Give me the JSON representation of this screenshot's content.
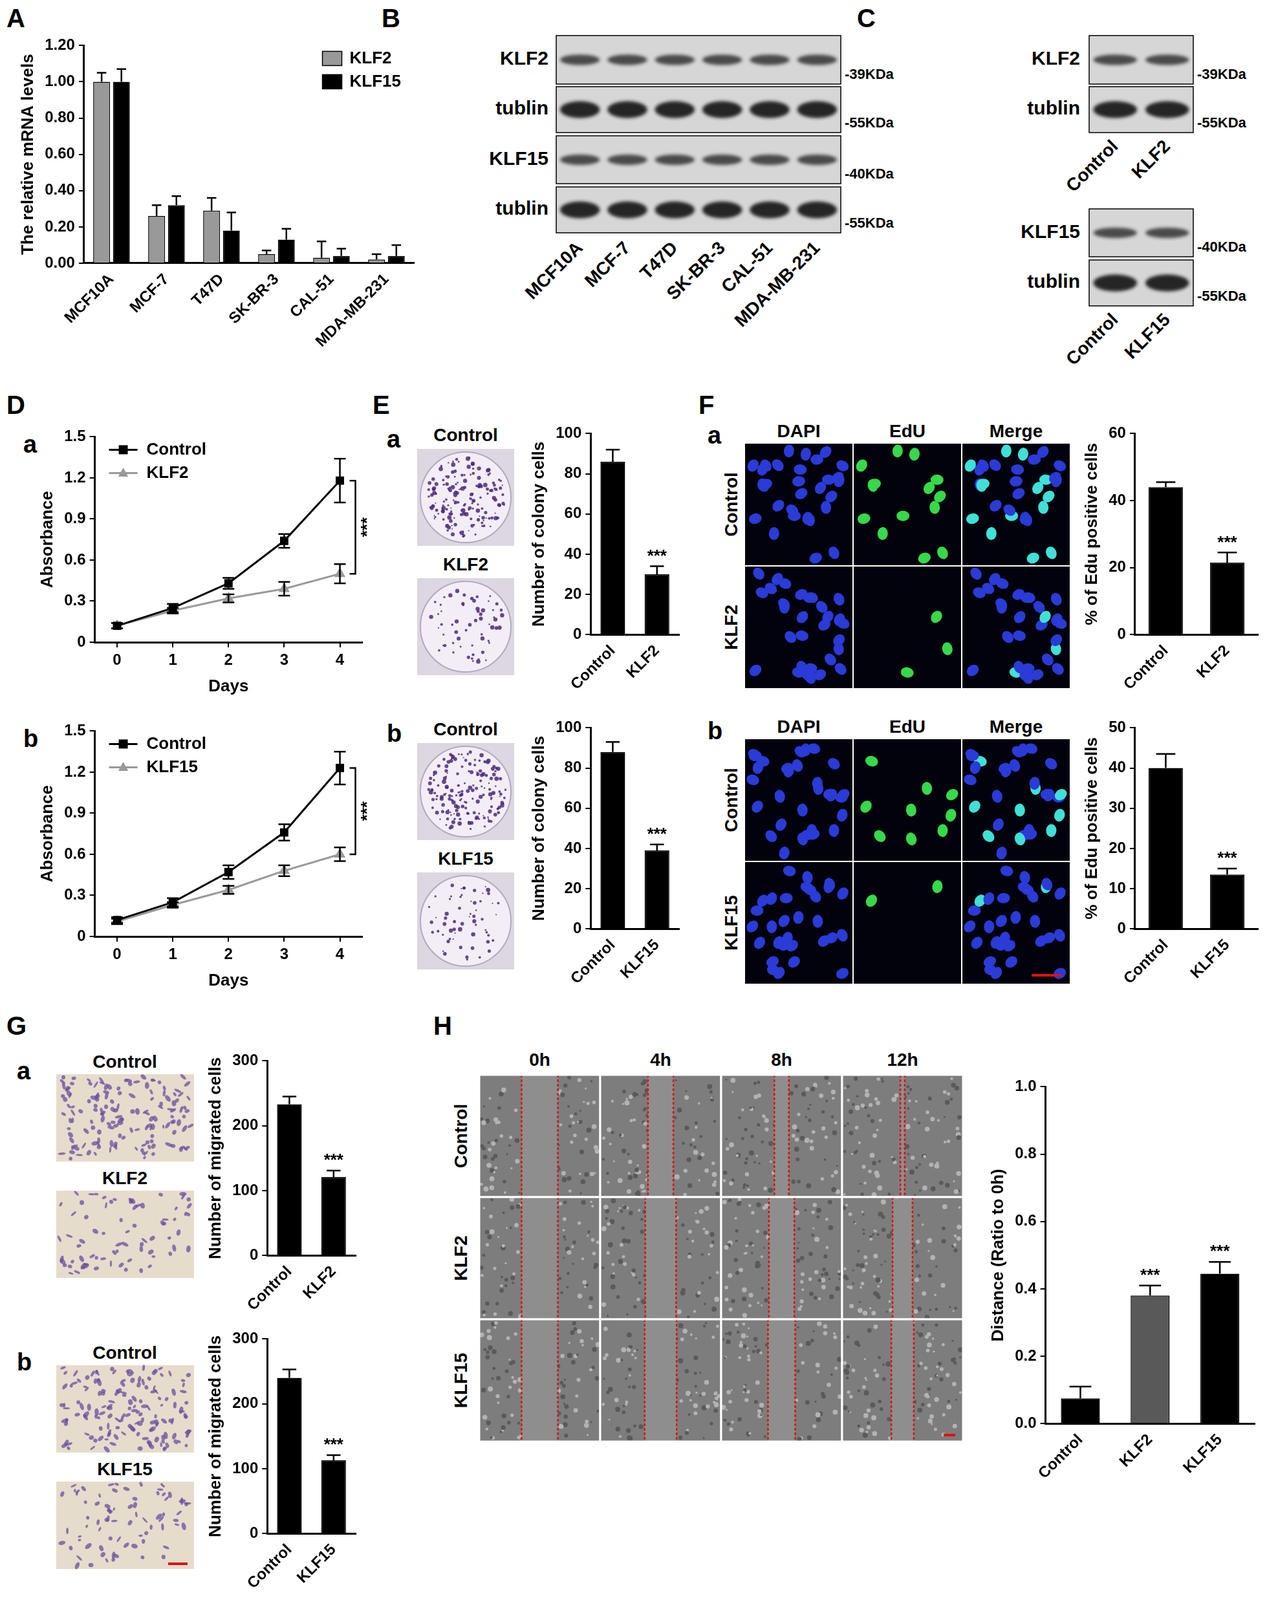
{
  "chart_data": [
    {
      "panel": "A",
      "type": "bar",
      "y_label": "The relative mRNA levels",
      "categories": [
        "MCF10A",
        "MCF-7",
        "T47D",
        "SK-BR-3",
        "CAL-51",
        "MDA-MB-231"
      ],
      "series": [
        {
          "name": "KLF2",
          "color": "#999999",
          "values": [
            1.0,
            0.26,
            0.29,
            0.05,
            0.03,
            0.02
          ],
          "errors": [
            0.05,
            0.06,
            0.07,
            0.02,
            0.09,
            0.03
          ]
        },
        {
          "name": "KLF15",
          "color": "#000000",
          "values": [
            1.0,
            0.32,
            0.18,
            0.13,
            0.04,
            0.04
          ],
          "errors": [
            0.07,
            0.05,
            0.1,
            0.06,
            0.04,
            0.06
          ]
        }
      ],
      "ylim": [
        0,
        1.2
      ],
      "yticks": [
        {
          "value": 0,
          "label": "0.00"
        },
        {
          "value": 0.2,
          "label": "0.20"
        },
        {
          "value": 0.4,
          "label": "0.40"
        },
        {
          "value": 0.6,
          "label": "0.60"
        },
        {
          "value": 0.8,
          "label": "0.80"
        },
        {
          "value": 1.0,
          "label": "1.00"
        },
        {
          "value": 1.2,
          "label": "1.20"
        }
      ],
      "grid": false,
      "legend": "top-right"
    },
    {
      "panel": "D",
      "subpanel": "a",
      "type": "line",
      "x_label": "Days",
      "y_label": "Absorbance",
      "x": [
        0,
        1,
        2,
        3,
        4
      ],
      "series": [
        {
          "name": "Control",
          "color": "#000000",
          "marker": "square",
          "line_style": "solid",
          "values": [
            0.12,
            0.25,
            0.43,
            0.74,
            1.18
          ],
          "errors": [
            0.02,
            0.03,
            0.04,
            0.05,
            0.16
          ]
        },
        {
          "name": "KLF2",
          "color": "#999999",
          "marker": "triangle",
          "line_style": "solid",
          "values": [
            0.12,
            0.23,
            0.32,
            0.39,
            0.5
          ],
          "errors": [
            0.02,
            0.02,
            0.03,
            0.05,
            0.07
          ]
        }
      ],
      "xlim": [
        -0.4,
        4.4
      ],
      "xticks": [
        0,
        1,
        2,
        3,
        4
      ],
      "ylim": [
        0,
        1.5
      ],
      "yticks": [
        0,
        0.3,
        0.6,
        0.9,
        1.2,
        1.5
      ],
      "grid": false,
      "legend": "top-left",
      "annotation": "***"
    },
    {
      "subpanel": "b",
      "type": "line",
      "x_label": "Days",
      "y_label": "Absorbance",
      "x": [
        0,
        1,
        2,
        3,
        4
      ],
      "series": [
        {
          "name": "Control",
          "color": "#000000",
          "marker": "square",
          "line_style": "solid",
          "values": [
            0.12,
            0.25,
            0.47,
            0.76,
            1.23
          ],
          "errors": [
            0.02,
            0.03,
            0.05,
            0.06,
            0.12
          ]
        },
        {
          "name": "KLF15",
          "color": "#999999",
          "marker": "triangle",
          "line_style": "solid",
          "values": [
            0.11,
            0.23,
            0.34,
            0.48,
            0.6
          ],
          "errors": [
            0.02,
            0.02,
            0.03,
            0.04,
            0.05
          ]
        }
      ],
      "xlim": [
        -0.4,
        4.4
      ],
      "xticks": [
        0,
        1,
        2,
        3,
        4
      ],
      "ylim": [
        0,
        1.5
      ],
      "yticks": [
        0,
        0.3,
        0.6,
        0.9,
        1.2,
        1.5
      ],
      "grid": false,
      "legend": "top-left",
      "annotation": "***"
    },
    {
      "type": "bar",
      "y_label": "Number of colony cells",
      "categories": [
        "Control",
        "KLF2"
      ],
      "values": [
        86,
        30
      ],
      "errors": [
        6,
        4
      ],
      "color": "#000000",
      "ylim": [
        0,
        100
      ],
      "yticks": [
        0,
        20,
        40,
        60,
        80,
        100
      ],
      "grid": false,
      "significance": [
        null,
        "***"
      ]
    },
    {
      "type": "bar",
      "y_label": "Number of colony cells",
      "categories": [
        "Control",
        "KLF15"
      ],
      "values": [
        88,
        39
      ],
      "errors": [
        5,
        3
      ],
      "color": "#000000",
      "ylim": [
        0,
        100
      ],
      "yticks": [
        0,
        20,
        40,
        60,
        80,
        100
      ],
      "grid": false,
      "significance": [
        null,
        "***"
      ]
    },
    {
      "type": "bar",
      "y_label": "% of Edu positive cells",
      "categories": [
        "Control",
        "KLF2"
      ],
      "values": [
        44,
        21.5
      ],
      "errors": [
        1.5,
        3
      ],
      "color": "#000000",
      "ylim": [
        0,
        60
      ],
      "yticks": [
        0,
        20,
        40,
        60
      ],
      "grid": false,
      "significance": [
        null,
        "***"
      ]
    },
    {
      "type": "bar",
      "y_label": "% of Edu positive cells",
      "categories": [
        "Control",
        "KLF15"
      ],
      "values": [
        40,
        13.5
      ],
      "errors": [
        3.5,
        1.5
      ],
      "color": "#000000",
      "ylim": [
        0,
        50
      ],
      "yticks": [
        0,
        10,
        20,
        30,
        40,
        50
      ],
      "grid": false,
      "significance": [
        null,
        "***"
      ]
    },
    {
      "type": "bar",
      "y_label": "Number of migrated cells",
      "categories": [
        "Control",
        "KLF2"
      ],
      "values": [
        233,
        121
      ],
      "errors": [
        12,
        10
      ],
      "color": "#000000",
      "ylim": [
        0,
        300
      ],
      "yticks": [
        0,
        100,
        200,
        300
      ],
      "grid": false,
      "significance": [
        null,
        "***"
      ]
    },
    {
      "type": "bar",
      "y_label": "Number of migrated cells",
      "categories": [
        "Control",
        "KLF15"
      ],
      "values": [
        240,
        113
      ],
      "errors": [
        13,
        8
      ],
      "color": "#000000",
      "ylim": [
        0,
        300
      ],
      "yticks": [
        0,
        100,
        200,
        300
      ],
      "grid": false,
      "significance": [
        null,
        "***"
      ]
    },
    {
      "type": "bar",
      "y_label": "Distance (Ratio to 0h)",
      "categories": [
        "Control",
        "KLF2",
        "KLF15"
      ],
      "values": [
        0.075,
        0.38,
        0.445
      ],
      "errors": [
        0.035,
        0.03,
        0.035
      ],
      "colors": [
        "#000000",
        "#595959",
        "#000000"
      ],
      "ylim": [
        0,
        1.0
      ],
      "yticks": [
        {
          "value": 0,
          "label": "0.0"
        },
        0.2,
        0.4,
        0.6,
        0.8,
        {
          "value": 1.0,
          "label": "1.0"
        }
      ],
      "grid": false,
      "significance": [
        null,
        "***",
        "***"
      ]
    }
  ],
  "blots": [
    {
      "panel": "B",
      "lanes": [
        "MCF10A",
        "MCF-7",
        "T47D",
        "SK-BR-3",
        "CAL-51",
        "MDA-MB-231"
      ],
      "rows": [
        {
          "name": "KLF2",
          "size": "-39KDa"
        },
        {
          "name": "tublin",
          "size": "-55KDa"
        },
        {
          "name": "KLF15",
          "size": "-40KDa"
        },
        {
          "name": "tublin",
          "size": "-55KDa"
        }
      ]
    },
    {
      "panel": "C",
      "lanes": [
        "Control",
        "KLF2"
      ],
      "rows": [
        {
          "name": "KLF2",
          "size": "-39KDa"
        },
        {
          "name": "tublin",
          "size": "-55KDa"
        }
      ]
    },
    {
      "lanes": [
        "Control",
        "KLF15"
      ],
      "rows": [
        {
          "name": "KLF15",
          "size": "-40KDa"
        },
        {
          "name": "tublin",
          "size": "-55KDa"
        }
      ]
    }
  ],
  "colony_images": [
    {
      "panel": "E",
      "subpanel": "a",
      "rows": [
        "Control",
        "KLF2"
      ]
    },
    {
      "subpanel": "b",
      "rows": [
        "Control",
        "KLF15"
      ]
    }
  ],
  "edu_images": [
    {
      "panel": "F",
      "subpanel": "a",
      "columns": [
        "DAPI",
        "EdU",
        "Merge"
      ],
      "rows": [
        "Control",
        "KLF2"
      ]
    },
    {
      "subpanel": "b",
      "columns": [
        "DAPI",
        "EdU",
        "Merge"
      ],
      "rows": [
        "Control",
        "KLF15"
      ]
    }
  ],
  "transwell_images": [
    {
      "panel": "G",
      "subpanel": "a",
      "rows": [
        "Control",
        "KLF2"
      ]
    },
    {
      "subpanel": "b",
      "rows": [
        "Control",
        "KLF15"
      ]
    }
  ],
  "wound_images": {
    "panel": "H",
    "columns": [
      "0h",
      "4h",
      "8h",
      "12h"
    ],
    "rows": [
      "Control",
      "KLF2",
      "KLF15"
    ]
  }
}
